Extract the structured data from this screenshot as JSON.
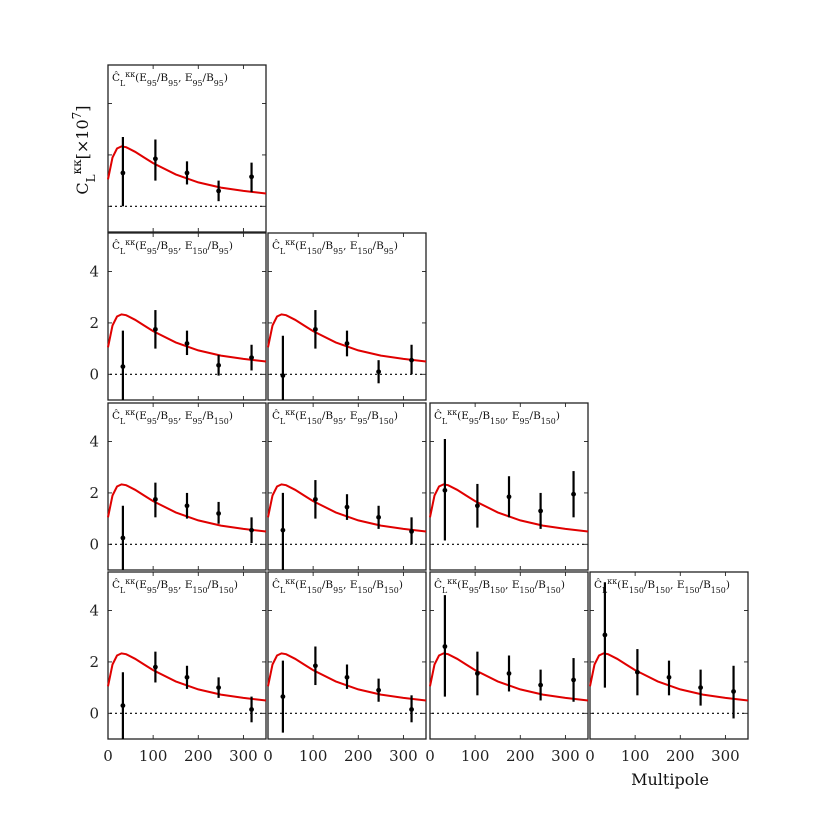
{
  "figure": {
    "ylabel": "C_L^{κκ}[×10^7]",
    "xlabel": "Multipole"
  },
  "chart_data": {
    "type": "scatter",
    "layout": "lower-triangle 4x4 grid",
    "xlim": [
      0,
      350
    ],
    "ylim": [
      -1,
      5.5
    ],
    "xticks": [
      0,
      100,
      200,
      300
    ],
    "yticks": [
      0,
      2,
      4
    ],
    "reference_line": {
      "y": 0,
      "style": "dotted"
    },
    "model_curve": {
      "color": "#e00000",
      "x": [
        0,
        10,
        20,
        30,
        40,
        60,
        80,
        100,
        150,
        200,
        250,
        300,
        350
      ],
      "y": [
        1.05,
        1.9,
        2.25,
        2.33,
        2.3,
        2.12,
        1.9,
        1.68,
        1.24,
        0.93,
        0.73,
        0.6,
        0.5
      ]
    },
    "panels": [
      {
        "row": 0,
        "col": 0,
        "title": "Ĉ_L^{κκ}(E_{95}/B_{95}, E_{95}/B_{95})",
        "points": [
          {
            "x": 33,
            "y": 1.3,
            "lo": 0.0,
            "hi": 2.7
          },
          {
            "x": 105,
            "y": 1.85,
            "lo": 1.0,
            "hi": 2.6
          },
          {
            "x": 175,
            "y": 1.3,
            "lo": 0.85,
            "hi": 1.75
          },
          {
            "x": 245,
            "y": 0.6,
            "lo": 0.2,
            "hi": 1.0
          },
          {
            "x": 318,
            "y": 1.15,
            "lo": 0.55,
            "hi": 1.7
          }
        ]
      },
      {
        "row": 1,
        "col": 0,
        "title": "Ĉ_L^{κκ}(E_{95}/B_{95}, E_{150}/B_{95})",
        "points": [
          {
            "x": 33,
            "y": 0.3,
            "lo": -1.0,
            "hi": 1.7
          },
          {
            "x": 105,
            "y": 1.75,
            "lo": 1.0,
            "hi": 2.5
          },
          {
            "x": 175,
            "y": 1.2,
            "lo": 0.75,
            "hi": 1.7
          },
          {
            "x": 245,
            "y": 0.35,
            "lo": -0.05,
            "hi": 0.75
          },
          {
            "x": 318,
            "y": 0.65,
            "lo": 0.15,
            "hi": 1.15
          }
        ]
      },
      {
        "row": 1,
        "col": 1,
        "title": "Ĉ_L^{κκ}(E_{150}/B_{95}, E_{150}/B_{95})",
        "points": [
          {
            "x": 33,
            "y": -0.05,
            "lo": -1.0,
            "hi": 1.5
          },
          {
            "x": 105,
            "y": 1.75,
            "lo": 1.0,
            "hi": 2.5
          },
          {
            "x": 175,
            "y": 1.2,
            "lo": 0.7,
            "hi": 1.7
          },
          {
            "x": 245,
            "y": 0.1,
            "lo": -0.35,
            "hi": 0.55
          },
          {
            "x": 318,
            "y": 0.55,
            "lo": 0.0,
            "hi": 1.15
          }
        ]
      },
      {
        "row": 2,
        "col": 0,
        "title": "Ĉ_L^{κκ}(E_{95}/B_{95}, E_{95}/B_{150})",
        "points": [
          {
            "x": 33,
            "y": 0.25,
            "lo": -1.0,
            "hi": 1.5
          },
          {
            "x": 105,
            "y": 1.75,
            "lo": 1.05,
            "hi": 2.4
          },
          {
            "x": 175,
            "y": 1.5,
            "lo": 1.0,
            "hi": 2.0
          },
          {
            "x": 245,
            "y": 1.2,
            "lo": 0.8,
            "hi": 1.65
          },
          {
            "x": 318,
            "y": 0.55,
            "lo": 0.05,
            "hi": 1.05
          }
        ]
      },
      {
        "row": 2,
        "col": 1,
        "title": "Ĉ_L^{κκ}(E_{150}/B_{95}, E_{95}/B_{150})",
        "points": [
          {
            "x": 33,
            "y": 0.55,
            "lo": -1.0,
            "hi": 2.0
          },
          {
            "x": 105,
            "y": 1.75,
            "lo": 1.0,
            "hi": 2.5
          },
          {
            "x": 175,
            "y": 1.45,
            "lo": 0.95,
            "hi": 1.95
          },
          {
            "x": 245,
            "y": 1.05,
            "lo": 0.6,
            "hi": 1.5
          },
          {
            "x": 318,
            "y": 0.5,
            "lo": 0.0,
            "hi": 1.05
          }
        ]
      },
      {
        "row": 2,
        "col": 2,
        "title": "Ĉ_L^{κκ}(E_{95}/B_{150}, E_{95}/B_{150})",
        "points": [
          {
            "x": 33,
            "y": 2.1,
            "lo": 0.15,
            "hi": 4.1
          },
          {
            "x": 105,
            "y": 1.5,
            "lo": 0.65,
            "hi": 2.35
          },
          {
            "x": 175,
            "y": 1.85,
            "lo": 1.05,
            "hi": 2.65
          },
          {
            "x": 245,
            "y": 1.3,
            "lo": 0.6,
            "hi": 2.0
          },
          {
            "x": 318,
            "y": 1.95,
            "lo": 1.05,
            "hi": 2.85
          }
        ]
      },
      {
        "row": 3,
        "col": 0,
        "title": "Ĉ_L^{κκ}(E_{95}/B_{95}, E_{150}/B_{150})",
        "points": [
          {
            "x": 33,
            "y": 0.3,
            "lo": -1.0,
            "hi": 1.6
          },
          {
            "x": 105,
            "y": 1.8,
            "lo": 1.2,
            "hi": 2.4
          },
          {
            "x": 175,
            "y": 1.4,
            "lo": 0.95,
            "hi": 1.85
          },
          {
            "x": 245,
            "y": 1.0,
            "lo": 0.6,
            "hi": 1.4
          },
          {
            "x": 318,
            "y": 0.15,
            "lo": -0.35,
            "hi": 0.65
          }
        ]
      },
      {
        "row": 3,
        "col": 1,
        "title": "Ĉ_L^{κκ}(E_{150}/B_{95}, E_{150}/B_{150})",
        "points": [
          {
            "x": 33,
            "y": 0.65,
            "lo": -0.75,
            "hi": 2.05
          },
          {
            "x": 105,
            "y": 1.85,
            "lo": 1.1,
            "hi": 2.6
          },
          {
            "x": 175,
            "y": 1.4,
            "lo": 0.95,
            "hi": 1.9
          },
          {
            "x": 245,
            "y": 0.9,
            "lo": 0.45,
            "hi": 1.35
          },
          {
            "x": 318,
            "y": 0.15,
            "lo": -0.35,
            "hi": 0.7
          }
        ]
      },
      {
        "row": 3,
        "col": 2,
        "title": "Ĉ_L^{κκ}(E_{95}/B_{150}, E_{150}/B_{150})",
        "points": [
          {
            "x": 33,
            "y": 2.6,
            "lo": 0.65,
            "hi": 4.6
          },
          {
            "x": 105,
            "y": 1.55,
            "lo": 0.7,
            "hi": 2.4
          },
          {
            "x": 175,
            "y": 1.55,
            "lo": 0.85,
            "hi": 2.25
          },
          {
            "x": 245,
            "y": 1.1,
            "lo": 0.5,
            "hi": 1.7
          },
          {
            "x": 318,
            "y": 1.3,
            "lo": 0.45,
            "hi": 2.15
          }
        ]
      },
      {
        "row": 3,
        "col": 3,
        "title": "Ĉ_L^{κκ}(E_{150}/B_{150}, E_{150}/B_{150})",
        "points": [
          {
            "x": 33,
            "y": 3.05,
            "lo": 1.0,
            "hi": 5.1
          },
          {
            "x": 105,
            "y": 1.6,
            "lo": 0.7,
            "hi": 2.5
          },
          {
            "x": 175,
            "y": 1.4,
            "lo": 0.7,
            "hi": 2.05
          },
          {
            "x": 245,
            "y": 1.0,
            "lo": 0.3,
            "hi": 1.7
          },
          {
            "x": 318,
            "y": 0.85,
            "lo": -0.2,
            "hi": 1.85
          }
        ]
      }
    ]
  }
}
